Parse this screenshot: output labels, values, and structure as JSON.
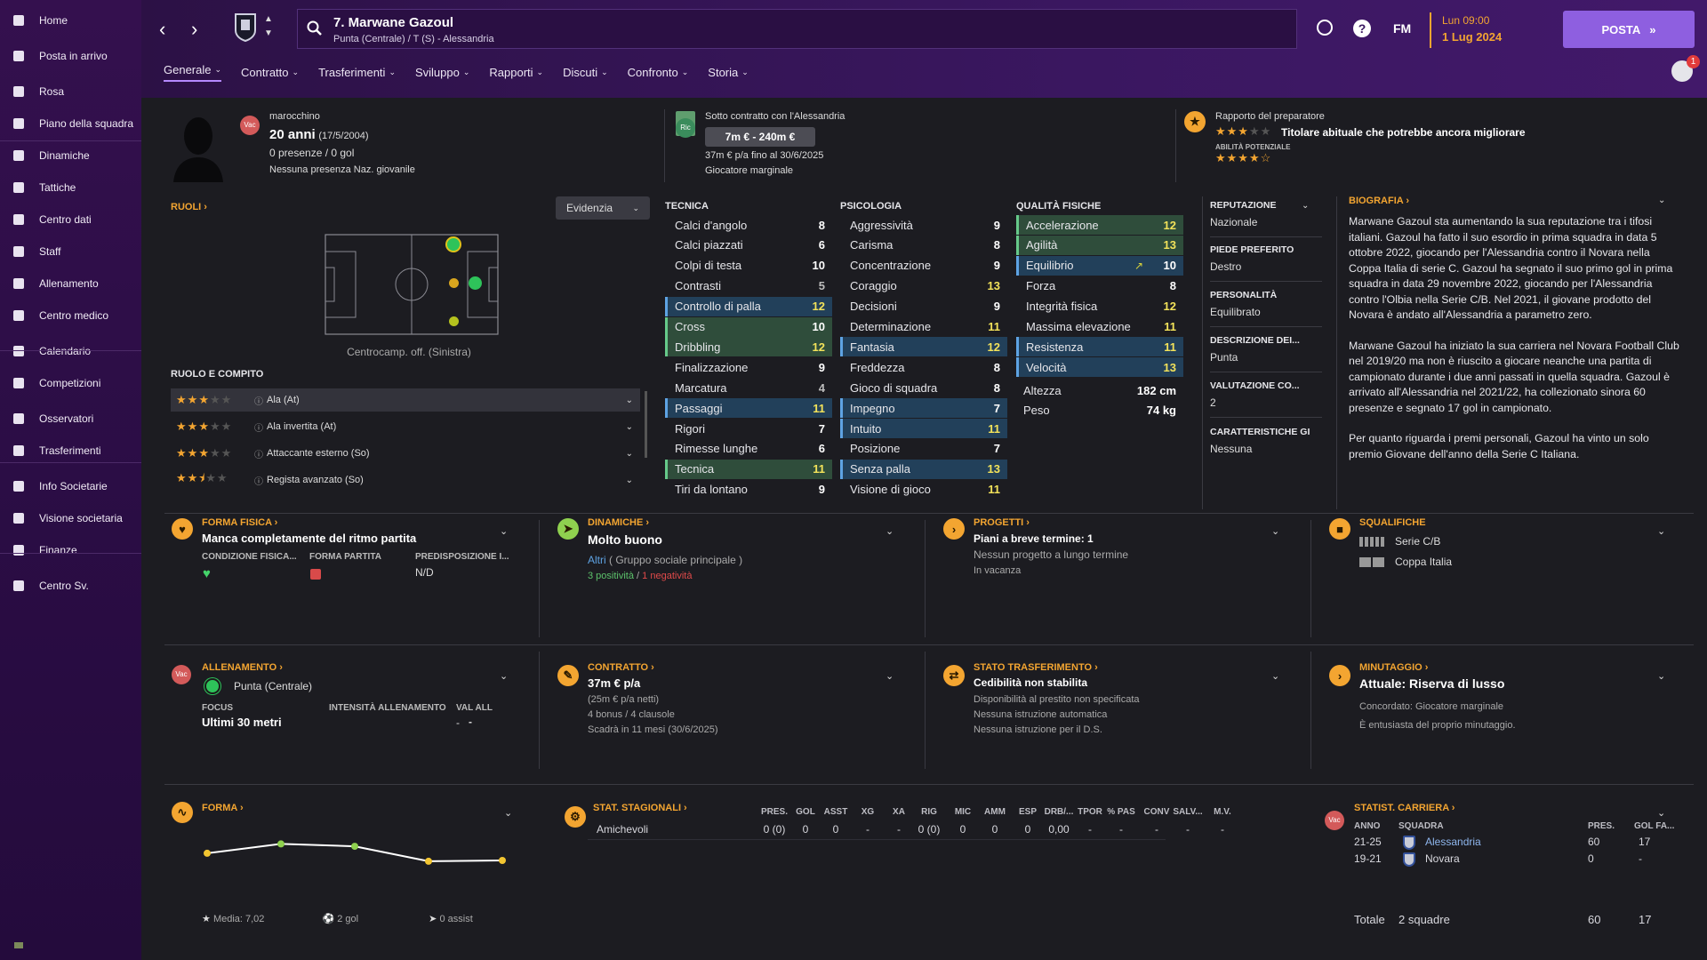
{
  "nav": [
    {
      "label": "Home",
      "icon": "home-icon"
    },
    {
      "label": "Posta in arrivo",
      "icon": "inbox-icon"
    },
    {
      "label": "Rosa",
      "icon": "shirt-icon"
    },
    {
      "label": "Piano della squadra",
      "icon": "clipboard-icon"
    },
    {
      "label": "Dinamiche",
      "icon": "people-icon"
    },
    {
      "label": "Tattiche",
      "icon": "tactics-icon"
    },
    {
      "label": "Centro dati",
      "icon": "data-icon"
    },
    {
      "label": "Staff",
      "icon": "staff-icon"
    },
    {
      "label": "Allenamento",
      "icon": "training-icon"
    },
    {
      "label": "Centro medico",
      "icon": "medical-icon"
    },
    {
      "label": "Calendario",
      "icon": "calendar-icon"
    },
    {
      "label": "Competizioni",
      "icon": "trophy-icon"
    },
    {
      "label": "Osservatori",
      "icon": "scout-icon"
    },
    {
      "label": "Trasferimenti",
      "icon": "transfer-icon"
    },
    {
      "label": "Info Societarie",
      "icon": "club-icon"
    },
    {
      "label": "Visione societaria",
      "icon": "vision-icon"
    },
    {
      "label": "Finanze",
      "icon": "finance-icon"
    },
    {
      "label": "Centro Sv.",
      "icon": "dev-icon"
    }
  ],
  "header": {
    "player_name": "7. Marwane Gazoul",
    "player_sub": "Punta (Centrale) / T (S) - Alessandria",
    "fm": "FM",
    "date_day": "Lun 09:00",
    "date": "1 Lug 2024",
    "continue_label": "POSTA",
    "notif_count": "1"
  },
  "tabs": [
    "Generale",
    "Contratto",
    "Trasferimenti",
    "Sviluppo",
    "Rapporti",
    "Discuti",
    "Confronto",
    "Storia"
  ],
  "profile": {
    "nationality": "marocchino",
    "nat_badge": "Vac",
    "age": "20 anni",
    "dob": "(17/5/2004)",
    "apps": "0 presenze / 0 gol",
    "national": "Nessuna presenza Naz. giovanile",
    "contract_title": "Sotto contratto con l'Alessandria",
    "contract_badge": "Ric",
    "value": "7m € - 240m €",
    "wage": "37m € p/a fino al 30/6/2025",
    "squad_status": "Giocatore marginale",
    "report_title": "Rapporto del preparatore",
    "report_text": "Titolare abituale che potrebbe ancora migliorare",
    "potential_label": "ABILITÀ POTENZIALE"
  },
  "roles": {
    "title": "RUOLI",
    "dropdown": "Evidenzia",
    "position_caption": "Centrocamp. off. (Sinistra)",
    "role_title": "RUOLO E COMPITO",
    "list": [
      {
        "name": "Ala (At)",
        "stars": 3
      },
      {
        "name": "Ala invertita (At)",
        "stars": 3
      },
      {
        "name": "Attaccante esterno (So)",
        "stars": 3
      },
      {
        "name": "Regista avanzato (So)",
        "stars": 2.5
      }
    ]
  },
  "technical": {
    "title": "TECNICA",
    "rows": [
      {
        "n": "Calci d'angolo",
        "v": "8",
        "h": ""
      },
      {
        "n": "Calci piazzati",
        "v": "6",
        "h": ""
      },
      {
        "n": "Colpi di testa",
        "v": "10",
        "h": ""
      },
      {
        "n": "Contrasti",
        "v": "5",
        "h": ""
      },
      {
        "n": "Controllo di palla",
        "v": "12",
        "h": "b"
      },
      {
        "n": "Cross",
        "v": "10",
        "h": "g"
      },
      {
        "n": "Dribbling",
        "v": "12",
        "h": "g"
      },
      {
        "n": "Finalizzazione",
        "v": "9",
        "h": ""
      },
      {
        "n": "Marcatura",
        "v": "4",
        "h": ""
      },
      {
        "n": "Passaggi",
        "v": "11",
        "h": "b"
      },
      {
        "n": "Rigori",
        "v": "7",
        "h": ""
      },
      {
        "n": "Rimesse lunghe",
        "v": "6",
        "h": ""
      },
      {
        "n": "Tecnica",
        "v": "11",
        "h": "g"
      },
      {
        "n": "Tiri da lontano",
        "v": "9",
        "h": ""
      }
    ]
  },
  "mental": {
    "title": "PSICOLOGIA",
    "rows": [
      {
        "n": "Aggressività",
        "v": "9",
        "h": ""
      },
      {
        "n": "Carisma",
        "v": "8",
        "h": ""
      },
      {
        "n": "Concentrazione",
        "v": "9",
        "h": ""
      },
      {
        "n": "Coraggio",
        "v": "13",
        "h": ""
      },
      {
        "n": "Decisioni",
        "v": "9",
        "h": ""
      },
      {
        "n": "Determinazione",
        "v": "11",
        "h": ""
      },
      {
        "n": "Fantasia",
        "v": "12",
        "h": "b"
      },
      {
        "n": "Freddezza",
        "v": "8",
        "h": ""
      },
      {
        "n": "Gioco di squadra",
        "v": "8",
        "h": ""
      },
      {
        "n": "Impegno",
        "v": "7",
        "h": "b"
      },
      {
        "n": "Intuito",
        "v": "11",
        "h": "b"
      },
      {
        "n": "Posizione",
        "v": "7",
        "h": ""
      },
      {
        "n": "Senza palla",
        "v": "13",
        "h": "b"
      },
      {
        "n": "Visione di gioco",
        "v": "11",
        "h": ""
      }
    ]
  },
  "physical": {
    "title": "QUALITÀ FISICHE",
    "rows": [
      {
        "n": "Accelerazione",
        "v": "12",
        "h": "g"
      },
      {
        "n": "Agilità",
        "v": "13",
        "h": "g"
      },
      {
        "n": "Equilibrio",
        "v": "10",
        "h": "b"
      },
      {
        "n": "Forza",
        "v": "8",
        "h": ""
      },
      {
        "n": "Integrità fisica",
        "v": "12",
        "h": ""
      },
      {
        "n": "Massima elevazione",
        "v": "11",
        "h": ""
      },
      {
        "n": "Resistenza",
        "v": "11",
        "h": "b"
      },
      {
        "n": "Velocità",
        "v": "13",
        "h": "b"
      }
    ],
    "height_label": "Altezza",
    "height": "182 cm",
    "weight_label": "Peso",
    "weight": "74 kg"
  },
  "info": [
    {
      "k": "REPUTAZIONE",
      "v": "Nazionale"
    },
    {
      "k": "PIEDE PREFERITO",
      "v": "Destro"
    },
    {
      "k": "PERSONALITÀ",
      "v": "Equilibrato"
    },
    {
      "k": "DESCRIZIONE DEI...",
      "v": "Punta"
    },
    {
      "k": "VALUTAZIONE CO...",
      "v": "2"
    },
    {
      "k": "CARATTERISTICHE GI",
      "v": "Nessuna"
    }
  ],
  "bio": {
    "title": "BIOGRAFIA",
    "p1": "Marwane Gazoul sta aumentando la sua reputazione tra i tifosi italiani. Gazoul ha fatto il suo esordio in prima squadra in data 5 ottobre 2022, giocando per l'Alessandria contro il Novara nella Coppa Italia di serie C. Gazoul ha segnato il suo primo gol in prima squadra in data 29 novembre 2022, giocando per l'Alessandria contro l'Olbia nella Serie C/B. Nel 2021, il giovane prodotto del Novara è andato all'Alessandria a parametro zero.",
    "p2": "Marwane Gazoul ha iniziato la sua carriera nel Novara Football Club nel 2019/20 ma non è riuscito a giocare neanche una partita di campionato durante i due anni passati in quella squadra. Gazoul è arrivato all'Alessandria nel 2021/22, ha collezionato sinora 60 presenze e segnato 17 gol in campionato.",
    "p3": "Per quanto riguarda i premi personali, Gazoul ha vinto un solo premio Giovane dell'anno della Serie C Italiana."
  },
  "cards": {
    "fitness": {
      "title": "FORMA FISICA",
      "headline": "Manca completamente del ritmo partita",
      "c1": "CONDIZIONE FISICA...",
      "c2": "FORMA PARTITA",
      "c3": "PREDISPOSIZIONE I...",
      "c3v": "N/D"
    },
    "dynamics": {
      "title": "DINAMICHE",
      "headline": "Molto buono",
      "group_link": "Altri",
      "group": "( Gruppo sociale principale )",
      "pos": "3 positività",
      "sep": "/",
      "neg": "1 negatività"
    },
    "plans": {
      "title": "PROGETTI",
      "headline": "Piani a breve termine: 1",
      "l1": "Nessun progetto a lungo termine",
      "l2": "In vacanza"
    },
    "bans": {
      "title": "SQUALIFICHE",
      "l1": "Serie C/B",
      "l2": "Coppa Italia"
    },
    "training": {
      "title": "ALLENAMENTO",
      "badge": "Vac",
      "role": "Punta (Centrale)",
      "focus_label": "FOCUS",
      "focus": "Ultimi 30 metri",
      "intensity": "INTENSITÀ ALLENAMENTO",
      "val_all": "VAL ALL",
      "val_all_v": "-"
    },
    "contract": {
      "title": "CONTRATTO",
      "headline": "37m € p/a",
      "l1": "(25m € p/a netti)",
      "l2": "4 bonus / 4 clausole",
      "l3": "Scadrà in 11 mesi  (30/6/2025)"
    },
    "transfer": {
      "title": "STATO TRASFERIMENTO",
      "headline": "Cedibilità non stabilita",
      "l1": "Disponibilità al prestito non specificata",
      "l2": "Nessuna istruzione automatica",
      "l3": "Nessuna istruzione per il D.S."
    },
    "minutes": {
      "title": "MINUTAGGIO",
      "headline": "Attuale: Riserva di lusso",
      "l1": "Concordato:  Giocatore marginale",
      "l2": "È entusiasta del proprio minutaggio."
    },
    "form": {
      "title": "FORMA",
      "avg": "Media: 7,02",
      "goals": "2 gol",
      "assists": "0 assist",
      "points": [
        0.57,
        0.92,
        0.83,
        0.27,
        0.3
      ],
      "colors": [
        "#f2c531",
        "#8fd14f",
        "#8fd14f",
        "#f2c531",
        "#f2c531"
      ]
    },
    "season": {
      "title": "STAT. STAGIONALI",
      "headers": [
        "PRES.",
        "GOL",
        "ASST",
        "XG",
        "XA",
        "RIG",
        "MIC",
        "AMM",
        "ESP",
        "DRB/...",
        "TPOR",
        "% PAS",
        "CONV",
        "SALV...",
        "M.V."
      ],
      "row_label": "Amichevoli",
      "row": [
        "0 (0)",
        "0",
        "0",
        "-",
        "-",
        "0 (0)",
        "0",
        "0",
        "0",
        "0,00",
        "-",
        "-",
        "-",
        "-",
        "-"
      ]
    },
    "career": {
      "title": "STATIST. CARRIERA",
      "badge": "Vac",
      "h_year": "ANNO",
      "h_team": "SQUADRA",
      "h_apps": "PRES.",
      "h_goals": "GOL FA...",
      "rows": [
        {
          "y": "21-25",
          "t": "Alessandria",
          "a": "60",
          "g": "17"
        },
        {
          "y": "19-21",
          "t": "Novara",
          "a": "0",
          "g": "-"
        }
      ],
      "total_label": "Totale",
      "total_teams": "2 squadre",
      "total_apps": "60",
      "total_goals": "17"
    }
  }
}
